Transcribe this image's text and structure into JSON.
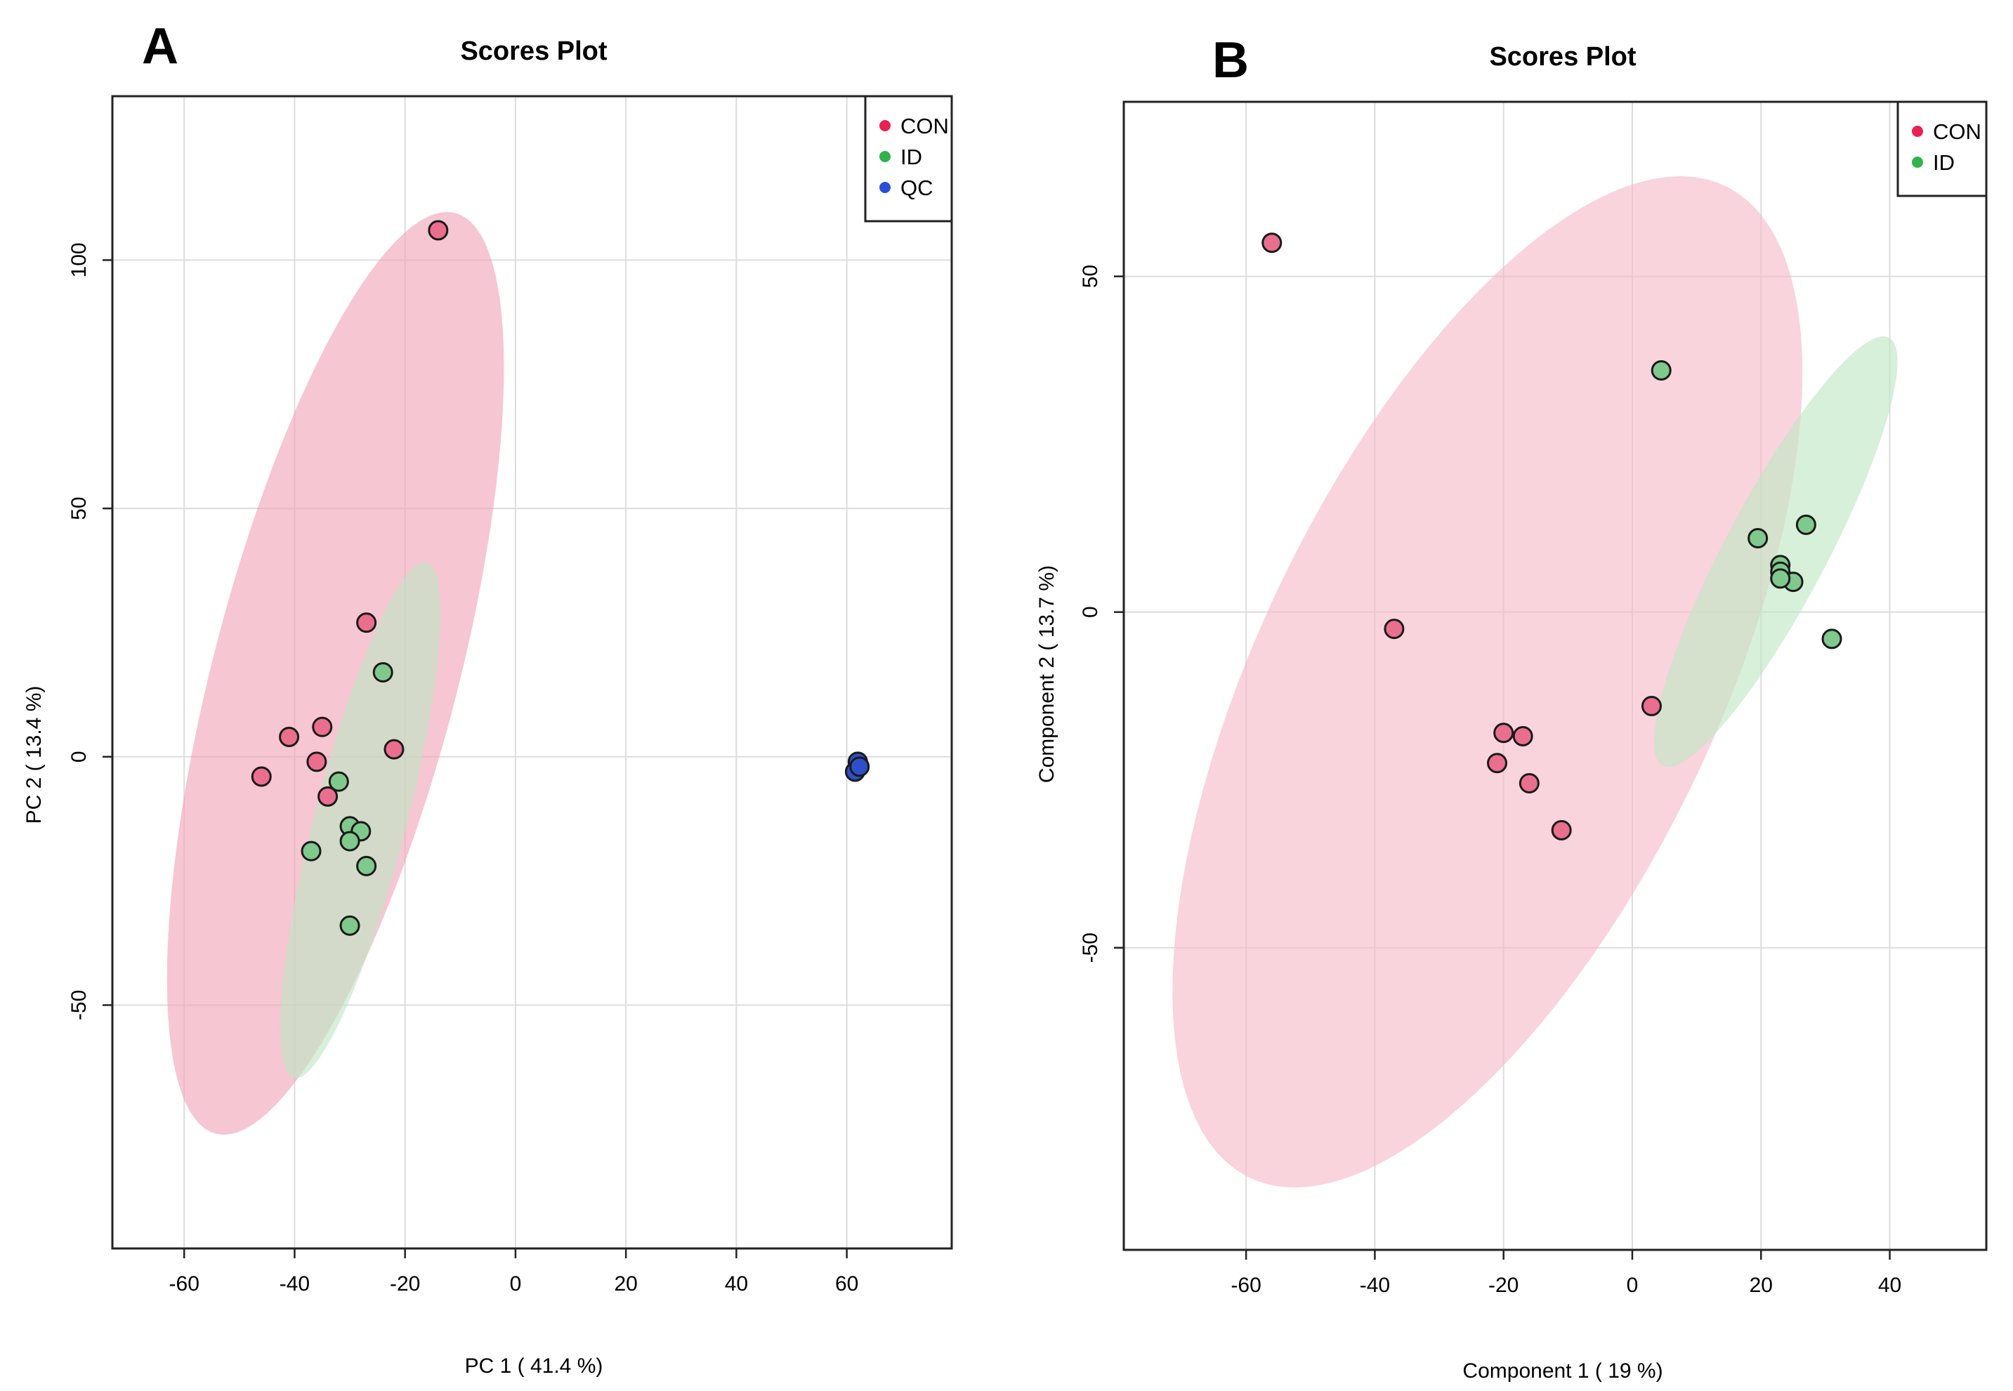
{
  "chart_data": [
    {
      "type": "scatter",
      "panel_label": "A",
      "title": "Scores Plot",
      "xlabel": "PC 1 ( 41.4 %)",
      "ylabel": "PC 2 ( 13.4 %)",
      "xlim": [
        -73,
        79
      ],
      "ylim": [
        -99,
        133
      ],
      "xticks": [
        -60,
        -40,
        -20,
        0,
        20,
        40,
        60
      ],
      "yticks": [
        -50,
        0,
        50,
        100
      ],
      "xtick_labels": [
        "-60",
        "-40",
        "-20",
        "0",
        "20",
        "40",
        "60"
      ],
      "ytick_labels": [
        "-50",
        "0",
        "50",
        "100"
      ],
      "grid": true,
      "legend_position": "top-right",
      "legend": [
        {
          "name": "CON",
          "color": "#e8214f"
        },
        {
          "name": "ID",
          "color": "#31b24a"
        },
        {
          "name": "QC",
          "color": "#2a4fd6"
        }
      ],
      "ellipses": [
        {
          "group": "CON",
          "cx": -32.6,
          "cy": 16.8,
          "rx": 95.2,
          "ry": 22.3,
          "angle": 77,
          "color": "#f0a3b6"
        },
        {
          "group": "ID",
          "cx": -28.1,
          "cy": -12.8,
          "rx": 53.3,
          "ry": 8.4,
          "angle": 77,
          "color": "#bfe6c3"
        }
      ],
      "series": [
        {
          "name": "CON",
          "color": "#ea6f8e",
          "x": [
            -14,
            -27,
            -41,
            -35,
            -46,
            -36,
            -34,
            -22
          ],
          "y": [
            106,
            27,
            4,
            6,
            -4,
            -1,
            -8,
            1.5
          ]
        },
        {
          "name": "ID",
          "color": "#7fc98c",
          "x": [
            -24,
            -32,
            -30,
            -28,
            -30,
            -37,
            -27,
            -30
          ],
          "y": [
            17,
            -5,
            -14,
            -15,
            -17,
            -19,
            -22,
            -34
          ]
        },
        {
          "name": "QC",
          "color": "#2e4fc9",
          "x": [
            62,
            61.5,
            62.3
          ],
          "y": [
            -1,
            -3,
            -2
          ]
        }
      ]
    },
    {
      "type": "scatter",
      "panel_label": "B",
      "title": "Scores Plot",
      "xlabel": "Component 1 ( 19 %)",
      "ylabel": "Component 2 ( 13.7 %)",
      "xlim": [
        -79,
        55
      ],
      "ylim": [
        -95,
        76
      ],
      "xticks": [
        -60,
        -40,
        -20,
        0,
        20,
        40
      ],
      "yticks": [
        -50,
        0,
        50
      ],
      "xtick_labels": [
        "-60",
        "-40",
        "-20",
        "0",
        "20",
        "40"
      ],
      "ytick_labels": [
        "-50",
        "0",
        "50"
      ],
      "grid": true,
      "legend_position": "top-right",
      "legend": [
        {
          "name": "CON",
          "color": "#e8214f"
        },
        {
          "name": "ID",
          "color": "#31b24a"
        }
      ],
      "ellipses": [
        {
          "group": "CON",
          "cx": -22.5,
          "cy": -10.4,
          "rx": 82.6,
          "ry": 35.3,
          "angle": 63,
          "color": "#f5b9c8"
        },
        {
          "group": "ID",
          "cx": 22.3,
          "cy": 9.0,
          "rx": 36.4,
          "ry": 7.8,
          "angle": 61,
          "color": "#bfe6c3"
        }
      ],
      "series": [
        {
          "name": "CON",
          "color": "#ea6f8e",
          "x": [
            -56,
            -37,
            3,
            -20,
            -17,
            -21,
            -16,
            -11
          ],
          "y": [
            55,
            -2.5,
            -14,
            -18,
            -18.5,
            -22.5,
            -25.5,
            -32.5
          ]
        },
        {
          "name": "ID",
          "color": "#7fc98c",
          "x": [
            4.5,
            27,
            19.5,
            23,
            23,
            25,
            31,
            23
          ],
          "y": [
            36,
            13,
            11,
            7,
            6,
            4.5,
            -4,
            5
          ]
        }
      ]
    }
  ]
}
